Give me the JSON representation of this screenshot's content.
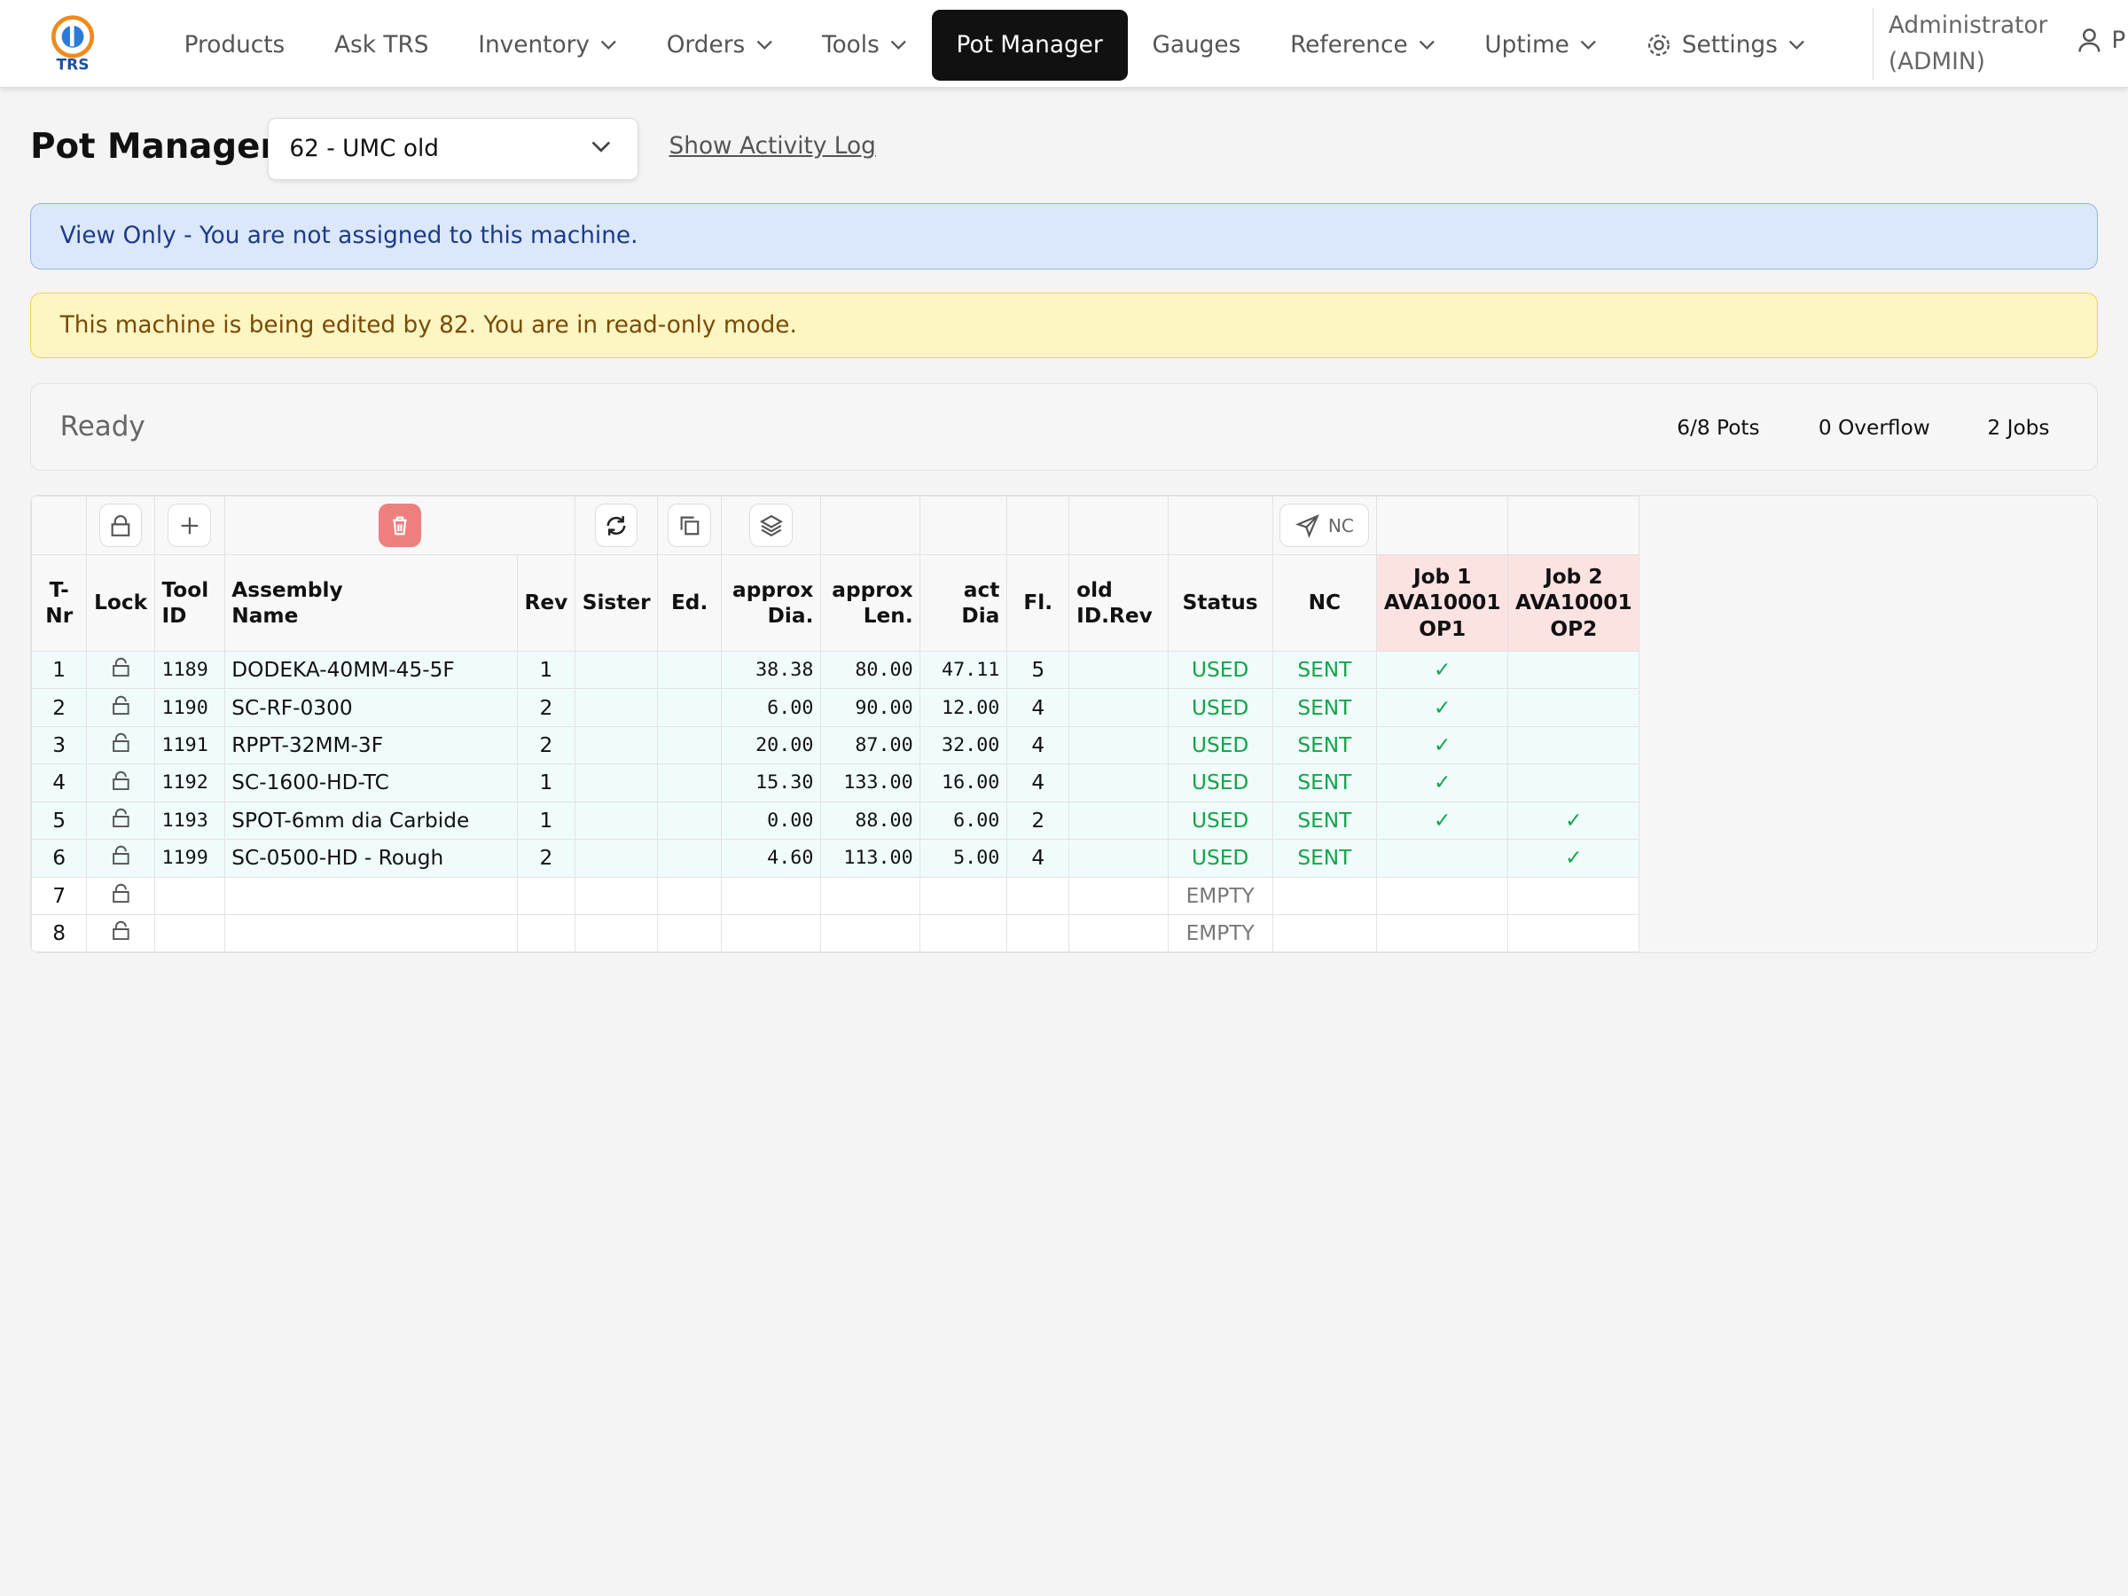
{
  "nav": {
    "logo": "TRS",
    "active_index": 5,
    "items": [
      {
        "label": "Products",
        "dropdown": false
      },
      {
        "label": "Ask TRS",
        "dropdown": false
      },
      {
        "label": "Inventory",
        "dropdown": true
      },
      {
        "label": "Orders",
        "dropdown": true
      },
      {
        "label": "Tools",
        "dropdown": true
      },
      {
        "label": "Pot Manager",
        "dropdown": false
      },
      {
        "label": "Gauges",
        "dropdown": false
      },
      {
        "label": "Reference",
        "dropdown": true
      },
      {
        "label": "Uptime",
        "dropdown": true
      },
      {
        "label": "Settings",
        "dropdown": true
      }
    ],
    "user": {
      "name": "Administrator",
      "role": "(ADMIN)",
      "extra": "P"
    }
  },
  "header": {
    "title": "Pot Manager",
    "machine": "62 - UMC old",
    "activity_link": "Show Activity Log"
  },
  "alerts": {
    "info": "View Only - You are not assigned to this machine.",
    "warning": "This machine is being edited by 82. You are in read-only mode."
  },
  "status": {
    "state": "Ready",
    "pots": "6/8 Pots",
    "overflow": "0 Overflow",
    "jobs": "2 Jobs"
  },
  "toolbar": {
    "nc_button": "NC"
  },
  "table": {
    "headers": [
      "T-\nNr",
      "Lock",
      "Tool\nID",
      "Assembly\nName",
      "Rev",
      "Sister",
      "Ed.",
      "approx\nDia.",
      "approx\nLen.",
      "act\nDia",
      "Fl.",
      "old\nID.Rev",
      "Status",
      "NC",
      "Job 1\nAVA10001\nOP1",
      "Job 2\nAVA10001\nOP2"
    ],
    "rows": [
      [
        "1",
        null,
        "1189",
        "DODEKA-40MM-45-5F",
        "1",
        null,
        null,
        "38.38",
        "80.00",
        "47.11",
        "5",
        null,
        "USED",
        "SENT",
        "✓",
        null
      ],
      [
        "2",
        null,
        "1190",
        "SC-RF-0300",
        "2",
        null,
        null,
        "6.00",
        "90.00",
        "12.00",
        "4",
        null,
        "USED",
        "SENT",
        "✓",
        null
      ],
      [
        "3",
        null,
        "1191",
        "RPPT-32MM-3F",
        "2",
        null,
        null,
        "20.00",
        "87.00",
        "32.00",
        "4",
        null,
        "USED",
        "SENT",
        "✓",
        null
      ],
      [
        "4",
        null,
        "1192",
        "SC-1600-HD-TC",
        "1",
        null,
        null,
        "15.30",
        "133.00",
        "16.00",
        "4",
        null,
        "USED",
        "SENT",
        "✓",
        null
      ],
      [
        "5",
        null,
        "1193",
        "SPOT-6mm dia Carbide",
        "1",
        null,
        null,
        "0.00",
        "88.00",
        "6.00",
        "2",
        null,
        "USED",
        "SENT",
        "✓",
        "✓"
      ],
      [
        "6",
        null,
        "1199",
        "SC-0500-HD - Rough",
        "2",
        null,
        null,
        "4.60",
        "113.00",
        "5.00",
        "4",
        null,
        "USED",
        "SENT",
        null,
        "✓"
      ],
      [
        "7",
        null,
        null,
        null,
        null,
        null,
        null,
        null,
        null,
        null,
        null,
        null,
        "EMPTY",
        null,
        null,
        null
      ],
      [
        "8",
        null,
        null,
        null,
        null,
        null,
        null,
        null,
        null,
        null,
        null,
        null,
        "EMPTY",
        null,
        null,
        null
      ]
    ]
  }
}
